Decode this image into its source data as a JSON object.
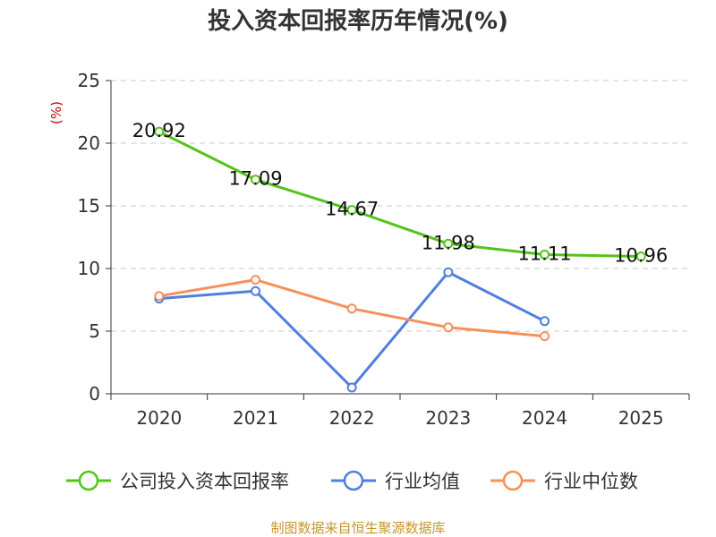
{
  "chart_data": {
    "type": "line",
    "title": "投入资本回报率历年情况(%)",
    "ylabel": "(%)",
    "xlabel": "",
    "categories": [
      "2020",
      "2021",
      "2022",
      "2023",
      "2024",
      "2025"
    ],
    "ylim": [
      0,
      25
    ],
    "yticks": [
      0,
      5,
      10,
      15,
      20,
      25
    ],
    "grid": true,
    "legend_position": "bottom",
    "series": [
      {
        "name": "公司投入资本回报率",
        "color": "#52c41a",
        "values": [
          20.92,
          17.09,
          14.67,
          11.98,
          11.11,
          10.96
        ],
        "labels": [
          "20.92",
          "17.09",
          "14.67",
          "11.98",
          "11.11",
          "10.96"
        ]
      },
      {
        "name": "行业均值",
        "color": "#4f7fdf",
        "values": [
          7.6,
          8.2,
          0.5,
          9.7,
          5.8,
          null
        ]
      },
      {
        "name": "行业中位数",
        "color": "#f5905a",
        "values": [
          7.8,
          9.1,
          6.8,
          5.3,
          4.6,
          null
        ]
      }
    ]
  },
  "source": "制图数据来自恒生聚源数据库"
}
